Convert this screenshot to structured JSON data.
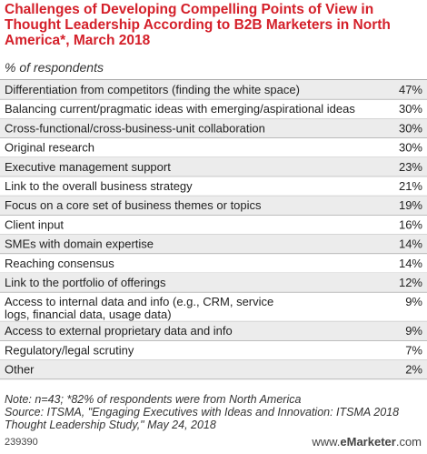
{
  "title": "Challenges of Developing Compelling Points of View in Thought Leadership According to B2B Marketers in North America*, March 2018",
  "subtitle": "% of respondents",
  "chart_data": {
    "type": "table",
    "categories": [
      "Differentiation from competitors (finding the white space)",
      "Balancing current/pragmatic ideas with emerging/aspirational ideas",
      "Cross-functional/cross-business-unit collaboration",
      "Original research",
      "Executive management support",
      "Link to the overall business strategy",
      "Focus on a core set of business themes or topics",
      "Client input",
      "SMEs with domain expertise",
      "Reaching consensus",
      "Link to the portfolio of offerings",
      "Access to internal data and info (e.g., CRM, service logs, financial data, usage data)",
      "Access to external proprietary data and info",
      "Regulatory/legal scrutiny",
      "Other"
    ],
    "values": [
      47,
      30,
      30,
      30,
      23,
      21,
      19,
      16,
      14,
      14,
      12,
      9,
      9,
      7,
      2
    ],
    "value_labels": [
      "47%",
      "30%",
      "30%",
      "30%",
      "23%",
      "21%",
      "19%",
      "16%",
      "14%",
      "14%",
      "12%",
      "9%",
      "9%",
      "7%",
      "2%"
    ]
  },
  "note": "Note: n=43; *82% of respondents were from North America",
  "source": "Source: ITSMA, \"Engaging Executives with Ideas and Innovation: ITSMA 2018 Thought Leadership Study,\" May 24, 2018",
  "chart_id": "239390",
  "brand": {
    "prefix": "www.",
    "name": "eMarketer",
    "suffix": ".com"
  },
  "colors": {
    "title": "#d4202a",
    "row_alt": "#ececec",
    "rule": "#999999"
  }
}
